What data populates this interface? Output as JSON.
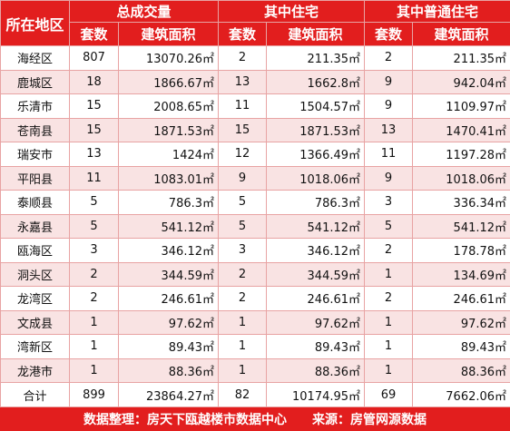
{
  "header": {
    "region_label": "所在地区",
    "groups": [
      "总成交量",
      "其中住宅",
      "其中普通住宅"
    ],
    "sub": [
      "套数",
      "建筑面积"
    ]
  },
  "rows": [
    {
      "region": "海经区",
      "c1": "807",
      "a1": "13070.26㎡",
      "c2": "2",
      "a2": "211.35㎡",
      "c3": "2",
      "a3": "211.35㎡"
    },
    {
      "region": "鹿城区",
      "c1": "18",
      "a1": "1866.67㎡",
      "c2": "13",
      "a2": "1662.8㎡",
      "c3": "9",
      "a3": "942.04㎡"
    },
    {
      "region": "乐清市",
      "c1": "15",
      "a1": "2008.65㎡",
      "c2": "11",
      "a2": "1504.57㎡",
      "c3": "9",
      "a3": "1109.97㎡"
    },
    {
      "region": "苍南县",
      "c1": "15",
      "a1": "1871.53㎡",
      "c2": "15",
      "a2": "1871.53㎡",
      "c3": "13",
      "a3": "1470.41㎡"
    },
    {
      "region": "瑞安市",
      "c1": "13",
      "a1": "1424㎡",
      "c2": "12",
      "a2": "1366.49㎡",
      "c3": "11",
      "a3": "1197.28㎡"
    },
    {
      "region": "平阳县",
      "c1": "11",
      "a1": "1083.01㎡",
      "c2": "9",
      "a2": "1018.06㎡",
      "c3": "9",
      "a3": "1018.06㎡"
    },
    {
      "region": "泰顺县",
      "c1": "5",
      "a1": "786.3㎡",
      "c2": "5",
      "a2": "786.3㎡",
      "c3": "3",
      "a3": "336.34㎡"
    },
    {
      "region": "永嘉县",
      "c1": "5",
      "a1": "541.12㎡",
      "c2": "5",
      "a2": "541.12㎡",
      "c3": "5",
      "a3": "541.12㎡"
    },
    {
      "region": "瓯海区",
      "c1": "3",
      "a1": "346.12㎡",
      "c2": "3",
      "a2": "346.12㎡",
      "c3": "2",
      "a3": "178.78㎡"
    },
    {
      "region": "洞头区",
      "c1": "2",
      "a1": "344.59㎡",
      "c2": "2",
      "a2": "344.59㎡",
      "c3": "1",
      "a3": "134.69㎡"
    },
    {
      "region": "龙湾区",
      "c1": "2",
      "a1": "246.61㎡",
      "c2": "2",
      "a2": "246.61㎡",
      "c3": "2",
      "a3": "246.61㎡"
    },
    {
      "region": "文成县",
      "c1": "1",
      "a1": "97.62㎡",
      "c2": "1",
      "a2": "97.62㎡",
      "c3": "1",
      "a3": "97.62㎡"
    },
    {
      "region": "湾新区",
      "c1": "1",
      "a1": "89.43㎡",
      "c2": "1",
      "a2": "89.43㎡",
      "c3": "1",
      "a3": "89.43㎡"
    },
    {
      "region": "龙港市",
      "c1": "1",
      "a1": "88.36㎡",
      "c2": "1",
      "a2": "88.36㎡",
      "c3": "1",
      "a3": "88.36㎡"
    }
  ],
  "total": {
    "label": "合计",
    "c1": "899",
    "a1": "23864.27㎡",
    "c2": "82",
    "a2": "10174.95㎡",
    "c3": "69",
    "a3": "7662.06㎡"
  },
  "footer": {
    "left": "数据整理：房天下瓯越楼市数据中心",
    "right": "来源：房管网源数据"
  },
  "colors": {
    "header_red": "#e21e1e",
    "row_pink": "#f9e3e3",
    "border": "#e8a3a3"
  }
}
